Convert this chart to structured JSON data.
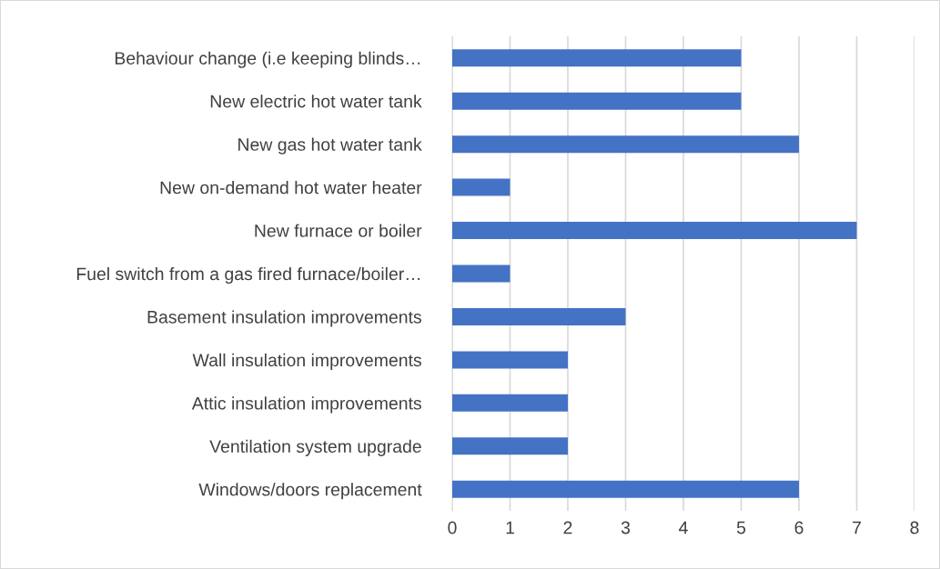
{
  "chart_data": {
    "type": "bar",
    "orientation": "horizontal",
    "categories": [
      "Behaviour change (i.e keeping blinds…",
      "New electric hot water tank",
      "New gas hot water tank",
      "New on-demand hot water heater",
      "New furnace or boiler",
      "Fuel switch from a gas fired furnace/boiler…",
      "Basement insulation improvements",
      "Wall insulation improvements",
      "Attic insulation improvements",
      "Ventilation system upgrade",
      "Windows/doors replacement"
    ],
    "values": [
      5,
      5,
      6,
      1,
      7,
      1,
      3,
      2,
      2,
      2,
      6
    ],
    "color": "#4472c4",
    "xlim": [
      0,
      8
    ],
    "xticks": [
      0,
      1,
      2,
      3,
      4,
      5,
      6,
      7,
      8
    ],
    "grid": "x"
  }
}
